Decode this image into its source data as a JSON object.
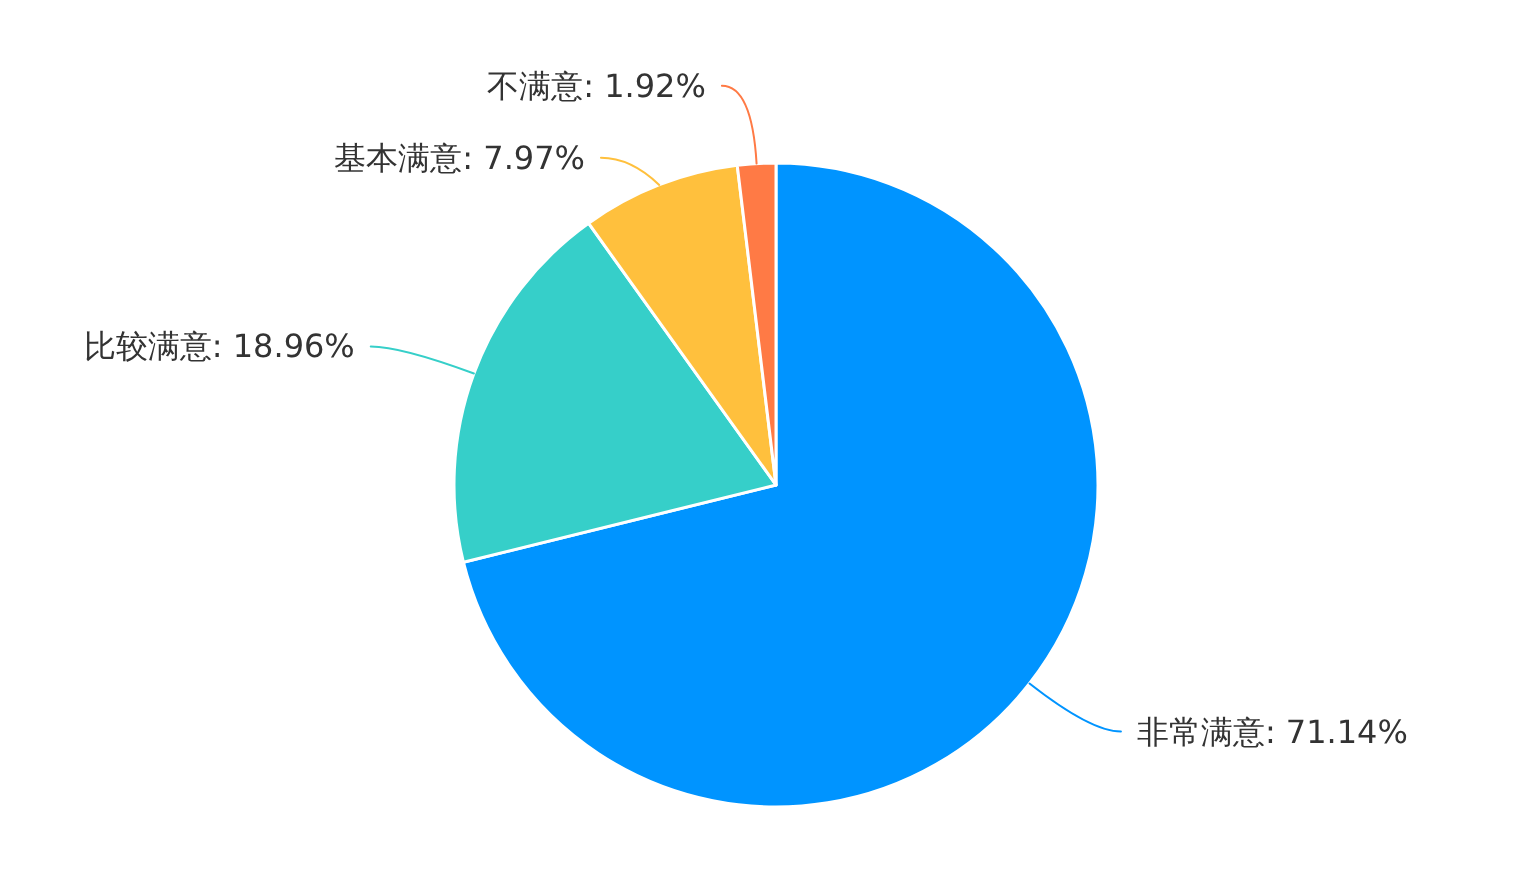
{
  "chart_data": {
    "type": "pie",
    "categories": [
      "非常满意",
      "比较满意",
      "基本满意",
      "不满意"
    ],
    "values": [
      71.14,
      18.96,
      7.97,
      1.92
    ],
    "colors": [
      "#0094ff",
      "#36cfc9",
      "#ffc03d",
      "#ff7a45"
    ],
    "value_labels": [
      ": 71.14%",
      ": 18.96%",
      ": 7.97%",
      ": 1.92%"
    ]
  }
}
